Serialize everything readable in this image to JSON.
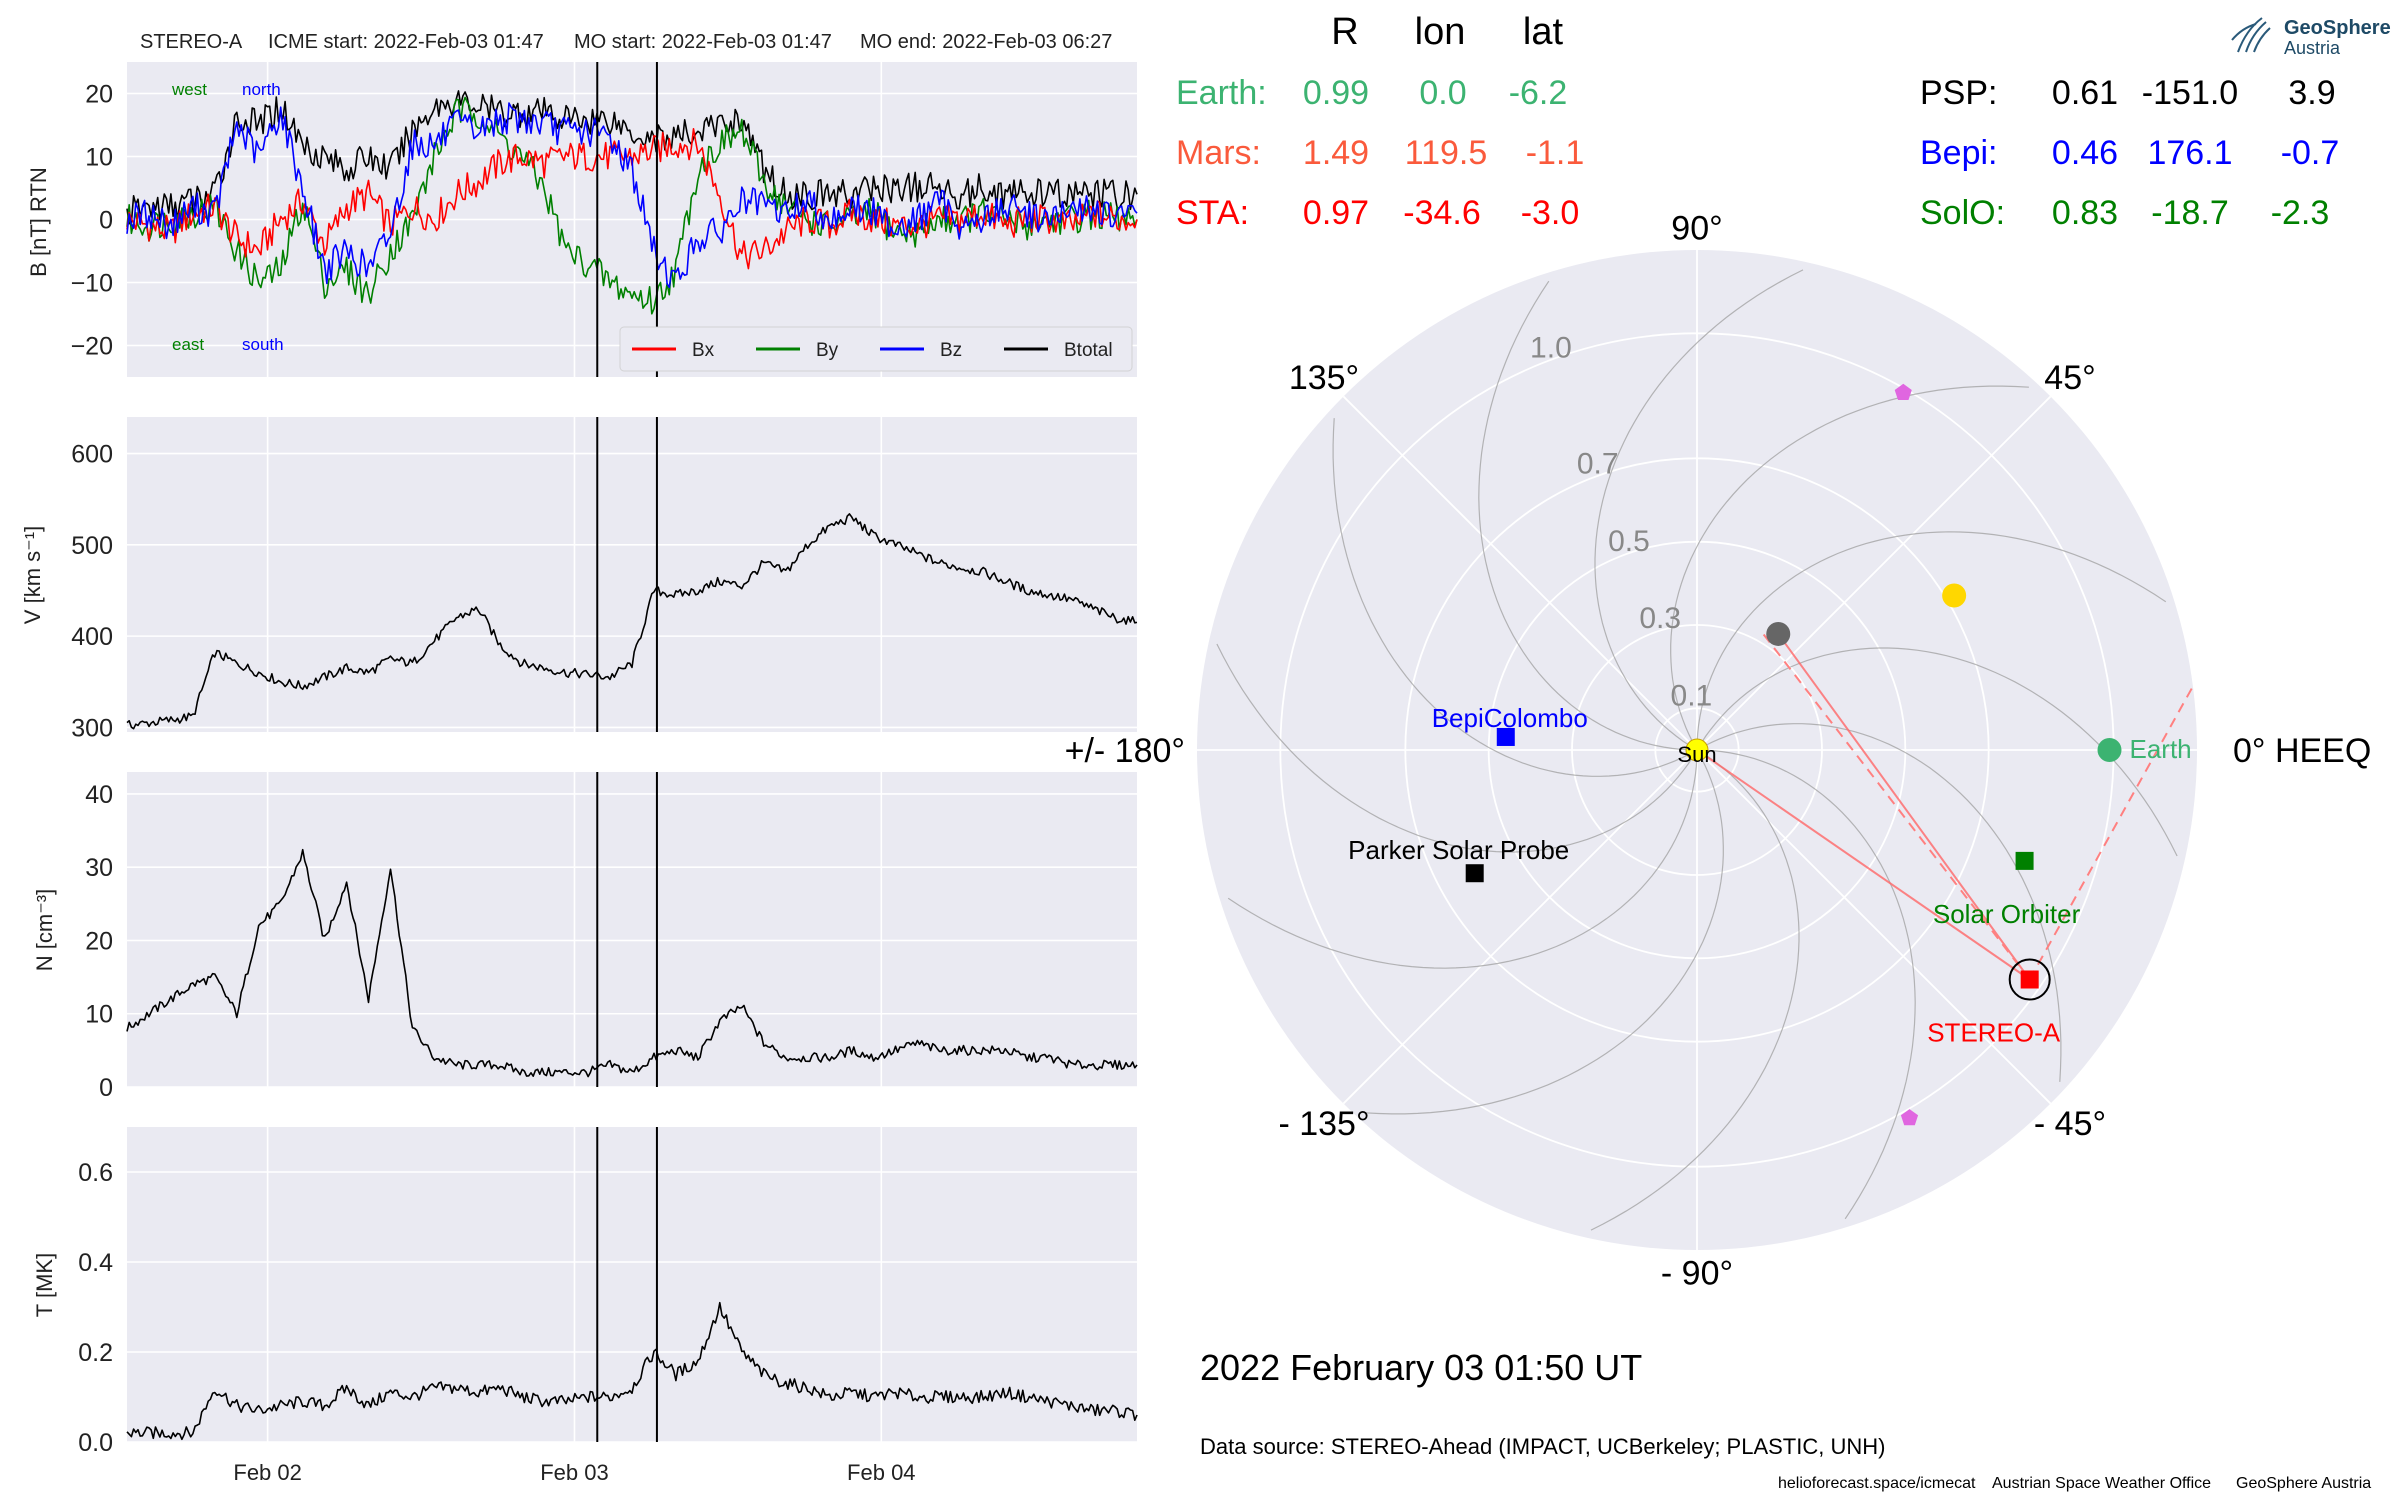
{
  "header": {
    "spacecraft": "STEREO-A",
    "icme_start": "ICME start: 2022-Feb-03 01:47",
    "mo_start": "MO start: 2022-Feb-03 01:47",
    "mo_end": "MO end: 2022-Feb-03 06:27"
  },
  "logo": {
    "line1": "GeoSphere",
    "line2": "Austria"
  },
  "positions": {
    "columns": [
      "R",
      "lon",
      "lat"
    ],
    "left_rows": [
      {
        "name": "Earth:",
        "R": "0.99",
        "lon": "0.0",
        "lat": "-6.2",
        "color": "#3cb371"
      },
      {
        "name": "Mars:",
        "R": "1.49",
        "lon": "119.5",
        "lat": "-1.1",
        "color": "#fa5a3c"
      },
      {
        "name": "STA:",
        "R": "0.97",
        "lon": "-34.6",
        "lat": "-3.0",
        "color": "#ff0000"
      }
    ],
    "right_rows": [
      {
        "name": "PSP:",
        "R": "0.61",
        "lon": "-151.0",
        "lat": "3.9",
        "color": "#000000"
      },
      {
        "name": "Bepi:",
        "R": "0.46",
        "lon": "176.1",
        "lat": "-0.7",
        "color": "#0000ff"
      },
      {
        "name": "SolO:",
        "R": "0.83",
        "lon": "-18.7",
        "lat": "-2.3",
        "color": "#008000"
      }
    ]
  },
  "timestamp": "2022 February 03  01:50 UT",
  "data_source": "Data source: STEREO-Ahead (IMPACT, UCBerkeley; PLASTIC, UNH)",
  "footer": {
    "url": "helioforecast.space/icmecat",
    "office": "Austrian Space Weather Office",
    "org": "GeoSphere Austria"
  },
  "chart_data": [
    {
      "type": "line",
      "panel": "magnetic field",
      "ylabel": "B [nT] RTN",
      "ylim": [
        -25,
        25
      ],
      "yticks": [
        "20",
        "10",
        "0",
        "−10",
        "−20"
      ],
      "xticks": [
        "Feb 02",
        "Feb 03",
        "Feb 04"
      ],
      "annotations": [
        {
          "text": "west",
          "color": "#008000"
        },
        {
          "text": "north",
          "color": "#0000ff"
        },
        {
          "text": "east",
          "color": "#008000"
        },
        {
          "text": "south",
          "color": "#0000ff"
        }
      ],
      "legend_position": "lower right",
      "series": [
        {
          "name": "Bx",
          "color": "#ff0000",
          "values": [
            0,
            -1,
            -2,
            1,
            2,
            -3,
            -5,
            0,
            3,
            -4,
            2,
            4,
            -1,
            2,
            0,
            4,
            6,
            9,
            10,
            9,
            10,
            10,
            10,
            10,
            11,
            12,
            12,
            4,
            -6,
            -5,
            -2,
            0,
            -1,
            1,
            0,
            -1,
            -1,
            0,
            0,
            1,
            -1,
            0,
            0,
            -1,
            1,
            0,
            0
          ]
        },
        {
          "name": "By",
          "color": "#008000",
          "values": [
            0,
            -1,
            0,
            1,
            2,
            -5,
            -10,
            -8,
            3,
            -10,
            -8,
            -12,
            -5,
            0,
            10,
            17,
            17,
            13,
            10,
            5,
            -5,
            -7,
            -10,
            -12,
            -13,
            -8,
            8,
            12,
            14,
            6,
            2,
            0,
            -1,
            0,
            1,
            -2,
            -2,
            0,
            0,
            1,
            0,
            -1,
            0,
            0,
            1,
            0,
            0
          ]
        },
        {
          "name": "Bz",
          "color": "#0000ff",
          "values": [
            0,
            1,
            -1,
            2,
            1,
            15,
            10,
            17,
            5,
            -8,
            -5,
            -8,
            -2,
            12,
            12,
            15,
            14,
            16,
            16,
            15,
            14,
            14,
            13,
            8,
            -5,
            -10,
            -3,
            -2,
            3,
            2,
            1,
            3,
            0,
            2,
            1,
            -1,
            0,
            3,
            -1,
            0,
            2,
            1,
            0,
            1,
            2,
            0,
            1
          ]
        },
        {
          "name": "Btotal",
          "color": "#000000",
          "values": [
            1,
            2,
            2,
            3,
            4,
            16,
            15,
            18,
            12,
            10,
            8,
            10,
            8,
            14,
            18,
            19,
            18,
            17,
            17,
            17,
            16,
            16,
            16,
            14,
            13,
            13,
            14,
            15,
            16,
            8,
            4,
            4,
            4,
            4,
            5,
            5,
            5,
            5,
            4,
            5,
            4,
            4,
            4,
            4,
            4,
            4,
            4
          ]
        }
      ],
      "vlines": [
        "2022-Feb-03 01:47",
        "2022-Feb-03 06:27"
      ]
    },
    {
      "type": "line",
      "panel": "speed",
      "ylabel": "V [km s⁻¹]",
      "ylim": [
        295,
        640
      ],
      "yticks": [
        "600",
        "500",
        "400",
        "300"
      ],
      "xticks": [
        "Feb 02",
        "Feb 03",
        "Feb 04"
      ],
      "series": [
        {
          "name": "V",
          "color": "#000000",
          "values": [
            302,
            305,
            308,
            312,
            382,
            370,
            360,
            350,
            345,
            355,
            365,
            360,
            375,
            370,
            395,
            420,
            430,
            390,
            370,
            365,
            360,
            358,
            355,
            370,
            450,
            445,
            450,
            460,
            455,
            480,
            470,
            500,
            520,
            530,
            510,
            500,
            490,
            480,
            475,
            470,
            460,
            450,
            445,
            440,
            430,
            420,
            415
          ]
        }
      ],
      "vlines": [
        "2022-Feb-03 01:47",
        "2022-Feb-03 06:27"
      ]
    },
    {
      "type": "line",
      "panel": "density",
      "ylabel": "N [cm⁻³]",
      "ylim": [
        0,
        43
      ],
      "yticks": [
        "40",
        "30",
        "20",
        "10",
        "0"
      ],
      "xticks": [
        "Feb 02",
        "Feb 03",
        "Feb 04"
      ],
      "series": [
        {
          "name": "N",
          "color": "#000000",
          "values": [
            8,
            10,
            12,
            14,
            15,
            10,
            22,
            25,
            32,
            20,
            28,
            12,
            30,
            8,
            4,
            3,
            3,
            3,
            2,
            2,
            2,
            2,
            3,
            2,
            4,
            5,
            4,
            9,
            11,
            6,
            4,
            4,
            4,
            5,
            4,
            5,
            6,
            5,
            5,
            5,
            5,
            4,
            4,
            3,
            3,
            3,
            3
          ]
        }
      ],
      "vlines": [
        "2022-Feb-03 01:47",
        "2022-Feb-03 06:27"
      ]
    },
    {
      "type": "line",
      "panel": "temperature",
      "ylabel": "T [MK]",
      "ylim": [
        0,
        0.7
      ],
      "yticks": [
        "0.6",
        "0.4",
        "0.2",
        "0.0"
      ],
      "xticks": [
        "Feb 02",
        "Feb 03",
        "Feb 04"
      ],
      "series": [
        {
          "name": "T",
          "color": "#000000",
          "values": [
            0.02,
            0.02,
            0.02,
            0.02,
            0.12,
            0.08,
            0.07,
            0.08,
            0.09,
            0.08,
            0.12,
            0.08,
            0.11,
            0.1,
            0.12,
            0.12,
            0.11,
            0.12,
            0.1,
            0.09,
            0.09,
            0.1,
            0.1,
            0.12,
            0.2,
            0.15,
            0.18,
            0.3,
            0.2,
            0.15,
            0.13,
            0.12,
            0.1,
            0.11,
            0.1,
            0.11,
            0.1,
            0.1,
            0.1,
            0.1,
            0.11,
            0.1,
            0.09,
            0.08,
            0.07,
            0.07,
            0.06
          ]
        }
      ],
      "vlines": [
        "2022-Feb-03 01:47",
        "2022-Feb-03 06:27"
      ]
    },
    {
      "type": "scatter",
      "panel": "polar position plot",
      "rlim": [
        0,
        1.2
      ],
      "rticks": [
        "0.1",
        "0.3",
        "0.5",
        "0.7",
        "1.0"
      ],
      "angle_labels": [
        "0° HEEQ",
        "45°",
        "90°",
        "135°",
        "+/- 180°",
        "- 135°",
        "- 90°",
        "- 45°"
      ],
      "bodies": [
        {
          "label": "Sun",
          "r": 0,
          "lon": 0,
          "color": "#ffff00",
          "marker": "circle"
        },
        {
          "label": "Earth",
          "r": 0.99,
          "lon": 0.0,
          "color": "#3cb371",
          "marker": "circle"
        },
        {
          "label": "STEREO-A",
          "r": 0.97,
          "lon": -34.6,
          "color": "#ff0000",
          "marker": "square"
        },
        {
          "label": "Solar Orbiter",
          "r": 0.83,
          "lon": -18.7,
          "color": "#008000",
          "marker": "square"
        },
        {
          "label": "BepiColombo",
          "r": 0.46,
          "lon": 176.1,
          "color": "#0000ff",
          "marker": "square"
        },
        {
          "label": "Parker Solar Probe",
          "r": 0.61,
          "lon": -151.0,
          "color": "#000000",
          "marker": "square"
        },
        {
          "label": "",
          "r": 0.72,
          "lon": 31.0,
          "color": "#ffd700",
          "marker": "circle"
        },
        {
          "label": "",
          "r": 0.34,
          "lon": 55.0,
          "color": "#666666",
          "marker": "circle"
        },
        {
          "label": "",
          "r": 0.99,
          "lon": 60.0,
          "color": "#e066e0",
          "marker": "pentagon"
        },
        {
          "label": "",
          "r": 1.02,
          "lon": -60.0,
          "color": "#e066e0",
          "marker": "pentagon"
        }
      ]
    }
  ]
}
